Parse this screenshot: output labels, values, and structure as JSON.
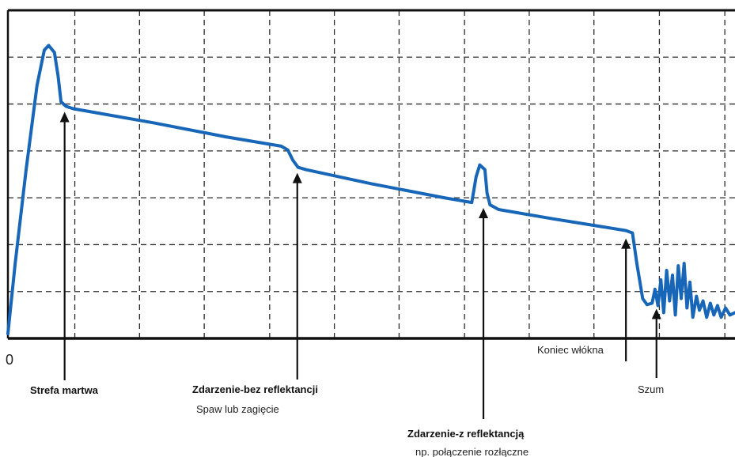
{
  "colors": {
    "trace": "#1766b8",
    "grid": "#2b2b2b",
    "axis": "#111111",
    "arrow": "#111111"
  },
  "chart_data": {
    "type": "line",
    "title": "",
    "xlabel": "",
    "ylabel": "",
    "origin_label": "0",
    "xlim": [
      0,
      100
    ],
    "ylim": [
      0,
      7
    ],
    "grid": true,
    "grid_x": [
      9.2,
      18.1,
      27.0,
      36.0,
      44.9,
      53.8,
      62.8,
      71.7,
      80.6,
      89.6,
      98.6
    ],
    "grid_y": [
      1,
      2,
      3,
      4,
      5,
      6
    ],
    "series": [
      {
        "name": "",
        "points": [
          [
            0,
            0.1
          ],
          [
            1.0,
            1.6
          ],
          [
            2.5,
            3.6
          ],
          [
            4.0,
            5.4
          ],
          [
            5.0,
            6.15
          ],
          [
            5.6,
            6.25
          ],
          [
            6.4,
            6.1
          ],
          [
            6.9,
            5.6
          ],
          [
            7.3,
            5.05
          ],
          [
            8.0,
            4.95
          ],
          [
            9.0,
            4.9
          ],
          [
            20,
            4.6
          ],
          [
            30,
            4.3
          ],
          [
            37.6,
            4.1
          ],
          [
            38.5,
            4.02
          ],
          [
            39.2,
            3.8
          ],
          [
            39.9,
            3.65
          ],
          [
            41,
            3.6
          ],
          [
            50,
            3.3
          ],
          [
            60,
            3.0
          ],
          [
            63.8,
            2.9
          ],
          [
            64.4,
            3.45
          ],
          [
            64.9,
            3.7
          ],
          [
            65.6,
            3.6
          ],
          [
            65.9,
            3.1
          ],
          [
            66.3,
            2.85
          ],
          [
            67.5,
            2.75
          ],
          [
            75,
            2.55
          ],
          [
            85,
            2.3
          ],
          [
            85.9,
            2.25
          ],
          [
            86.5,
            1.6
          ],
          [
            87.3,
            0.85
          ],
          [
            87.9,
            0.72
          ],
          [
            88.6,
            0.75
          ],
          [
            89.0,
            1.05
          ],
          [
            89.4,
            0.7
          ],
          [
            89.8,
            1.25
          ],
          [
            90.2,
            0.55
          ],
          [
            90.6,
            1.45
          ],
          [
            91.0,
            0.8
          ],
          [
            91.4,
            1.35
          ],
          [
            91.8,
            0.5
          ],
          [
            92.2,
            1.55
          ],
          [
            92.6,
            0.85
          ],
          [
            93.0,
            1.6
          ],
          [
            93.4,
            0.65
          ],
          [
            93.8,
            1.2
          ],
          [
            94.2,
            0.45
          ],
          [
            94.7,
            0.9
          ],
          [
            95.1,
            0.6
          ],
          [
            95.6,
            0.8
          ],
          [
            96.1,
            0.45
          ],
          [
            96.6,
            0.75
          ],
          [
            97.1,
            0.5
          ],
          [
            97.6,
            0.7
          ],
          [
            98.1,
            0.45
          ],
          [
            98.7,
            0.65
          ],
          [
            99.3,
            0.5
          ],
          [
            100,
            0.55
          ]
        ]
      }
    ],
    "annotations": [
      {
        "id": "dead-zone",
        "arrow_x": 7.8,
        "arrow_tip_y": 4.9,
        "labels": [
          "Strefa martwa"
        ]
      },
      {
        "id": "non-reflective-event",
        "arrow_x": 39.8,
        "arrow_tip_y": 3.6,
        "labels": [
          "Zdarzenie-bez reflektancji",
          "Spaw lub zagięcie"
        ]
      },
      {
        "id": "reflective-event",
        "arrow_x": 65.4,
        "arrow_tip_y": 2.85,
        "labels": [
          "Zdarzenie-z reflektancją",
          "np. połączenie rozłączne"
        ]
      },
      {
        "id": "fiber-end",
        "arrow_x": 85.0,
        "arrow_tip_y": 2.2,
        "labels": [
          "Koniec włókna"
        ]
      },
      {
        "id": "noise",
        "arrow_x": 89.2,
        "arrow_tip_y": 0.7,
        "labels": [
          "Szum"
        ]
      }
    ]
  }
}
